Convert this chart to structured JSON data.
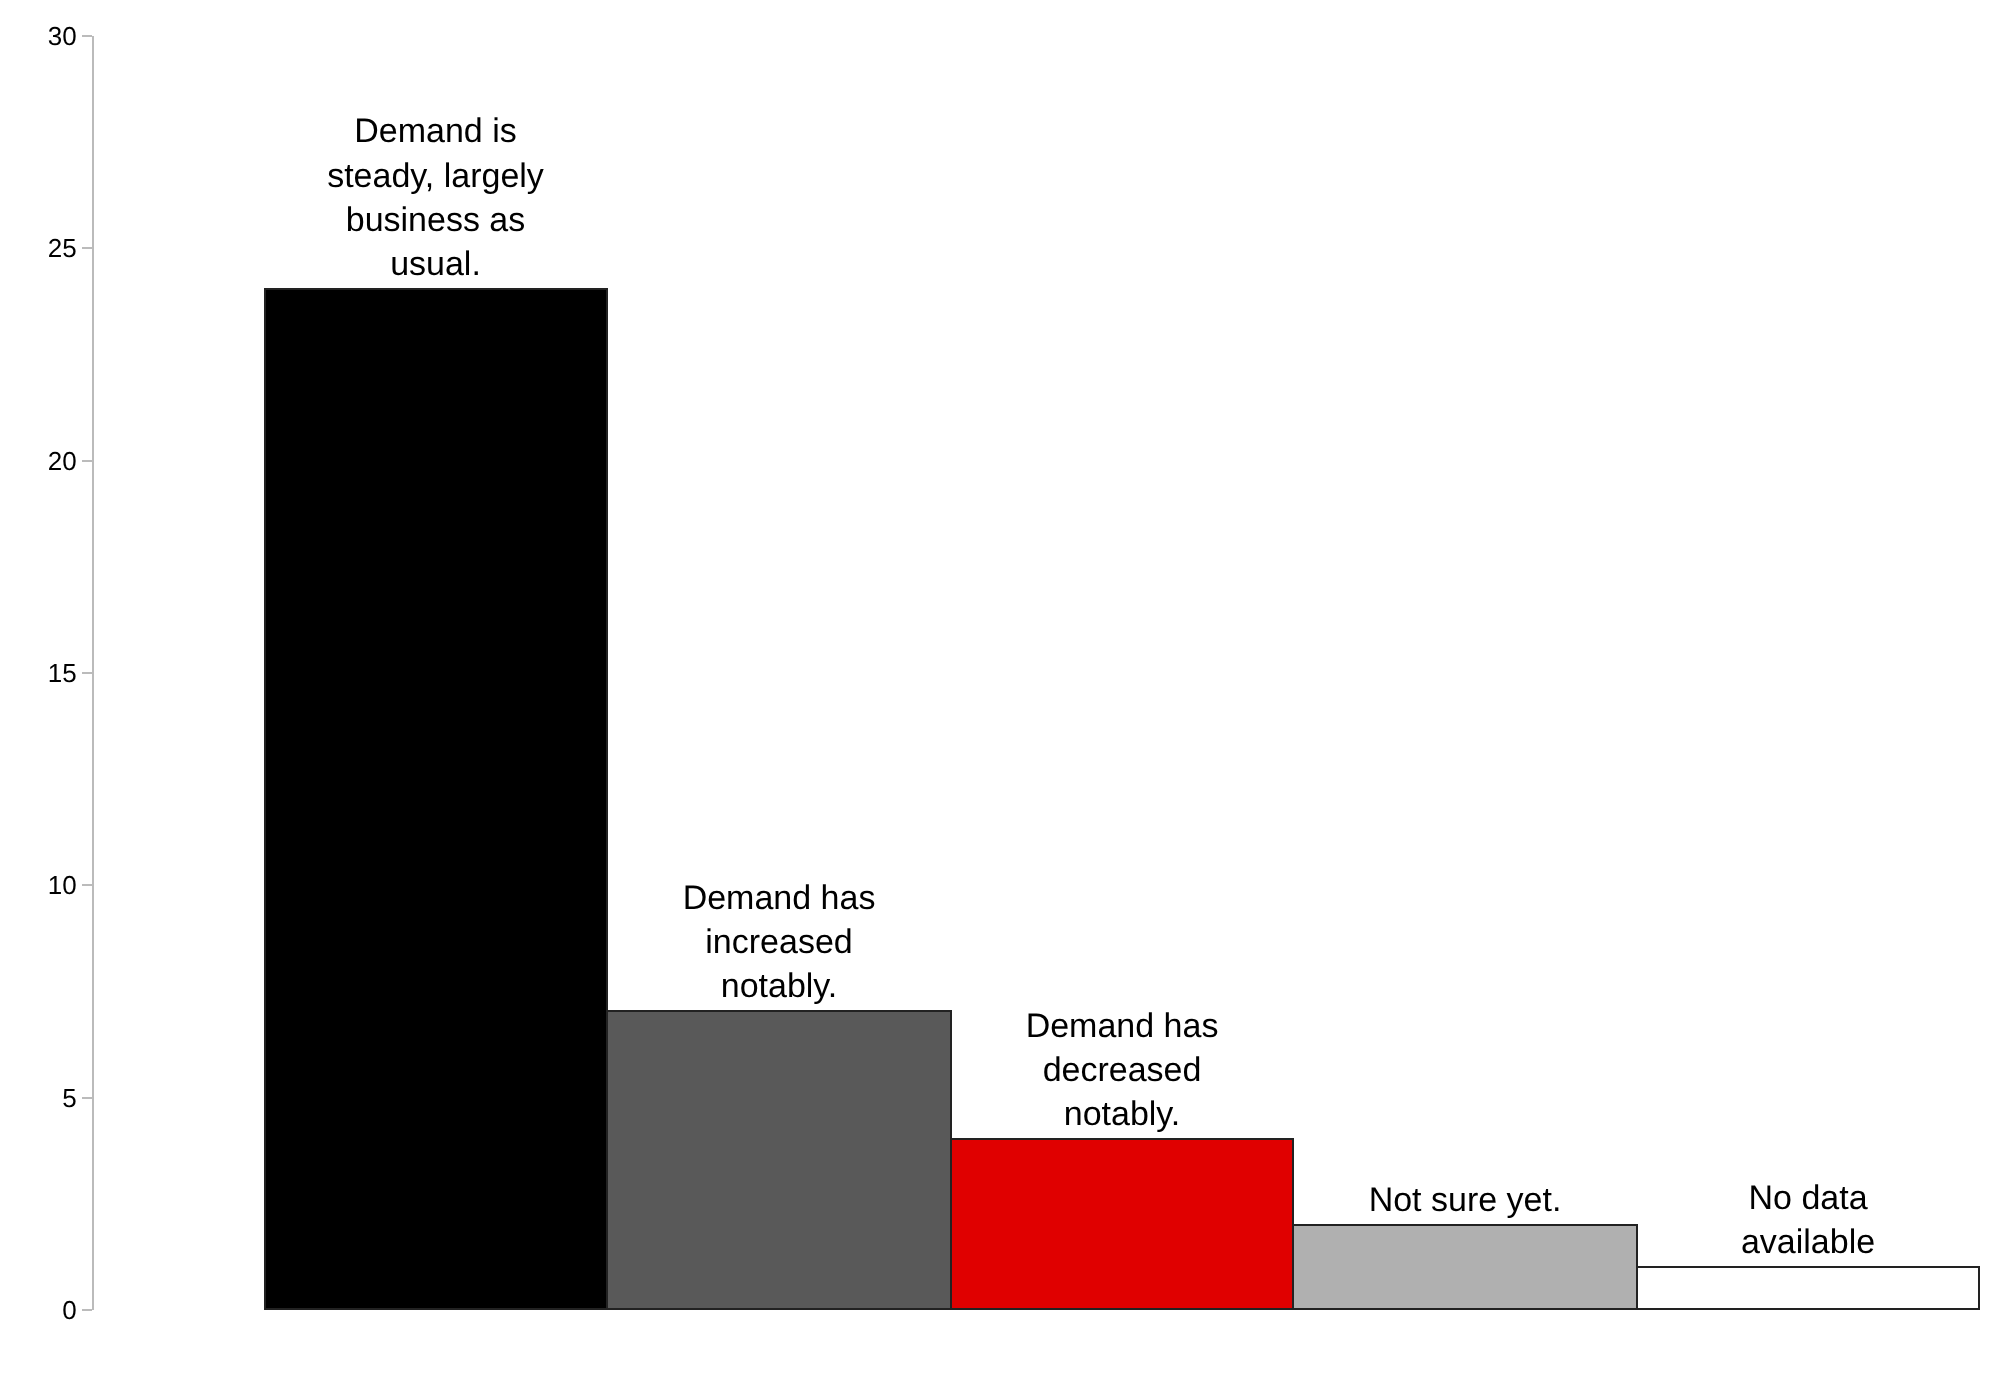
{
  "chart_data": {
    "type": "bar",
    "categories": [
      "Demand is steady, largely business as usual.",
      "Demand has increased notably.",
      "Demand has decreased notably.",
      "Not sure yet.",
      "No data available"
    ],
    "values": [
      24,
      7,
      4,
      2,
      1
    ],
    "colors": [
      "#000000",
      "#595959",
      "#e00000",
      "#b0b0b0",
      "#ffffff"
    ],
    "ylim": [
      0,
      30
    ],
    "yticks": [
      0,
      5,
      10,
      15,
      20,
      25,
      30
    ],
    "grid": false,
    "tick_labels": "y"
  }
}
